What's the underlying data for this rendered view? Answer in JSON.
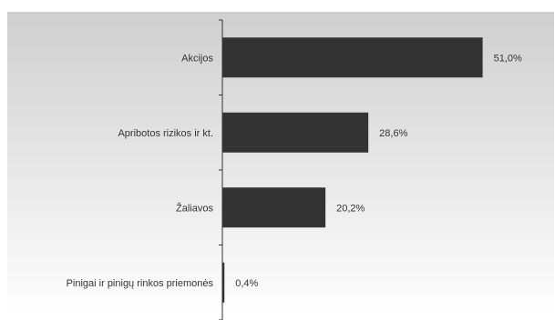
{
  "chart_data": {
    "type": "bar",
    "orientation": "horizontal",
    "categories": [
      "Akcijos",
      "Apribotos rizikos ir kt.",
      "Žaliavos",
      "Pinigai ir pinigų rinkos priemonės"
    ],
    "values": [
      51.0,
      28.6,
      20.2,
      0.4
    ],
    "value_labels": [
      "51,0%",
      "28,6%",
      "20,2%",
      "0,4%"
    ],
    "xlim": [
      0,
      60
    ],
    "grid": false,
    "legend": "none",
    "colors": {
      "bar": "#333333",
      "axis": "#333333",
      "background_top": "#cfcfcf",
      "background_bottom": "#ffffff"
    }
  }
}
